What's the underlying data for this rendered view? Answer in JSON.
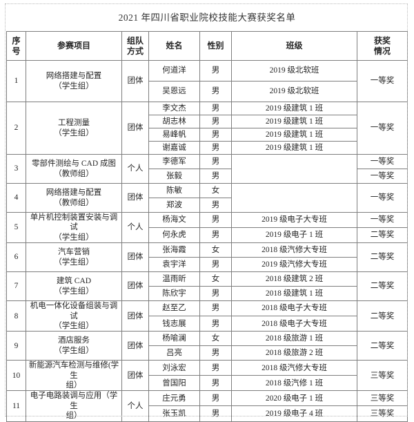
{
  "title": "2021 年四川省职业院校技能大赛获奖名单",
  "table": {
    "headers": [
      {
        "label": "序\n号"
      },
      {
        "label": "参赛项目"
      },
      {
        "label": "组队\n方式"
      },
      {
        "label": "姓名"
      },
      {
        "label": "性别"
      },
      {
        "label": "班级"
      },
      {
        "label": "获奖\n情况"
      }
    ],
    "rows": [
      {
        "no": "1",
        "project_line1": "网络搭建与配置",
        "project_line2": "（学生组）",
        "team": "团体",
        "class_empty_merged": false,
        "award": "一等奖",
        "members": [
          {
            "name": "何道洋",
            "gender": "男",
            "class": "2019 级北软班"
          },
          {
            "name": "吴恩远",
            "gender": "男",
            "class": "2019 级北软班"
          }
        ]
      },
      {
        "no": "2",
        "project_line1": "工程测量",
        "project_line2": "（学生组）",
        "team": "团体",
        "class_empty_merged": false,
        "award": "一等奖",
        "members": [
          {
            "name": "李文杰",
            "gender": "男",
            "class": "2019 级建筑 1 班"
          },
          {
            "name": "胡志林",
            "gender": "男",
            "class": "2019 级建筑 1 班"
          },
          {
            "name": "易峰帆",
            "gender": "男",
            "class": "2019 级建筑 1 班"
          },
          {
            "name": "谢嘉诚",
            "gender": "男",
            "class": "2019 级建筑 1 班"
          }
        ]
      },
      {
        "no": "3",
        "project_line1": "零部件测绘与 CAD 成图",
        "project_line2": "（教师组）",
        "team": "个人",
        "class_empty_merged": true,
        "award": null,
        "members": [
          {
            "name": "李德军",
            "gender": "男",
            "class": "",
            "award": "一等奖"
          },
          {
            "name": "张毅",
            "gender": "男",
            "class": "",
            "award": "一等奖"
          }
        ]
      },
      {
        "no": "4",
        "project_line1": "网络搭建与配置",
        "project_line2": "（教师组）",
        "team": "团体",
        "class_empty_merged": true,
        "award": "一等奖",
        "members": [
          {
            "name": "陈敏",
            "gender": "女",
            "class": ""
          },
          {
            "name": "郑波",
            "gender": "男",
            "class": ""
          }
        ]
      },
      {
        "no": "5",
        "project_line1": "单片机控制装置安装与调试",
        "project_line2": "（学生组）",
        "team": "个人",
        "class_empty_merged": false,
        "award": null,
        "members": [
          {
            "name": "杨海文",
            "gender": "男",
            "class": "2019 级电子大专班",
            "award": "一等奖"
          },
          {
            "name": "何永虎",
            "gender": "男",
            "class": "2019 级电子 1 班",
            "award": "二等奖"
          }
        ]
      },
      {
        "no": "6",
        "project_line1": "汽车营销",
        "project_line2": "（学生组）",
        "team": "团体",
        "class_empty_merged": false,
        "award": "二等奖",
        "members": [
          {
            "name": "张海霞",
            "gender": "女",
            "class": "2018 级汽修大专班"
          },
          {
            "name": "袁宇洋",
            "gender": "男",
            "class": "2019 级汽修大专班"
          }
        ]
      },
      {
        "no": "7",
        "project_line1": "建筑 CAD",
        "project_line2": "（学生组）",
        "team": "团体",
        "class_empty_merged": false,
        "award": "二等奖",
        "members": [
          {
            "name": "温雨昕",
            "gender": "女",
            "class": "2018 级建筑 2 班"
          },
          {
            "name": "陈欣宇",
            "gender": "男",
            "class": "2018 级建筑 1 班"
          }
        ]
      },
      {
        "no": "8",
        "project_line1": "机电一体化设备组装与调试",
        "project_line2": "（学生组）",
        "team": "团体",
        "class_empty_merged": false,
        "award": "二等奖",
        "members": [
          {
            "name": "赵至乙",
            "gender": "男",
            "class": "2018 级电子大专班"
          },
          {
            "name": "钱志展",
            "gender": "男",
            "class": "2018 级电子大专班"
          }
        ]
      },
      {
        "no": "9",
        "project_line1": "酒店服务",
        "project_line2": "（学生组）",
        "team": "团体",
        "class_empty_merged": false,
        "award": "二等奖",
        "members": [
          {
            "name": "杨喻澜",
            "gender": "女",
            "class": "2018 级旅游 1 班"
          },
          {
            "name": "吕亮",
            "gender": "男",
            "class": "2018 级旅游 2 班"
          }
        ]
      },
      {
        "no": "10",
        "project_line1": "新能源汽车检测与维修(学生",
        "project_line2": "组）",
        "team": "团体",
        "class_empty_merged": false,
        "award": "三等奖",
        "members": [
          {
            "name": "刘泳宏",
            "gender": "男",
            "class": "2018 级汽修大专班"
          },
          {
            "name": "曾国阳",
            "gender": "男",
            "class": "2018 级汽修 1 班"
          }
        ]
      },
      {
        "no": "11",
        "project_line1": "电子电路装调与应用（学生",
        "project_line2": "组）",
        "team": "个人",
        "class_empty_merged": false,
        "award": null,
        "members": [
          {
            "name": "庄元勇",
            "gender": "男",
            "class": "2020 级电子 1 班",
            "award": "三等奖"
          },
          {
            "name": "张玉凯",
            "gender": "男",
            "class": "2019 级电子 4 班",
            "award": "三等奖"
          }
        ]
      }
    ]
  }
}
